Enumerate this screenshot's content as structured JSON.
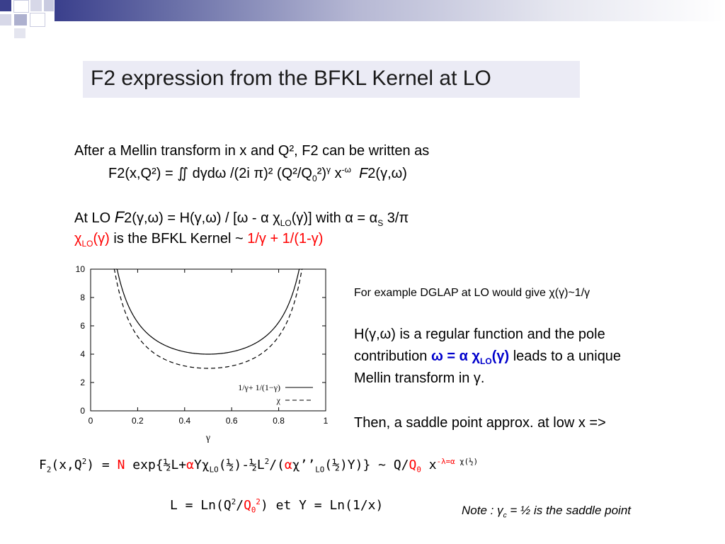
{
  "slide": {
    "title": "F2 expression from the BFKL Kernel at LO",
    "intro_line": "After a Mellin transform in x and Q², F2 can be written as",
    "formula_lhs": "F2(x,Q²) = ∬ dγdω /(2i π)² (Q²/Q",
    "formula_sub0": "0",
    "formula_mid": "²)",
    "formula_sup_gamma": "γ",
    "formula_x": " x",
    "formula_sup_omega": "-ω",
    "formula_F": "F",
    "formula_tail": "2(γ,ω)",
    "atlo_prefix": "At LO ",
    "atlo_F": "F",
    "atlo_mid": "2(γ,ω) = H(γ,ω) / [ω - α χ",
    "atlo_sub_lo": "LO",
    "atlo_after": "(γ)]  with α = α",
    "atlo_sub_s": "S",
    "atlo_end": " 3/π",
    "chi_red": "χ",
    "chi_sub": "LO",
    "chi_red_arg": "(γ)",
    "kernel_text": " is the BFKL Kernel ~ ",
    "kernel_red": "1/γ + 1/(1-γ)",
    "dglap_text": "For example DGLAP at LO would give χ(γ)~1/γ",
    "h_line1": "H(γ,ω) is a regular function and the pole",
    "h_line2_prefix": "contribution ",
    "h_line2_blue": "ω = α χ",
    "h_line2_blue_sub": "LO",
    "h_line2_blue_arg": "(γ)",
    "h_line2_suffix": " leads to a unique",
    "h_line3": "Mellin transform in γ.",
    "saddle_text": "Then, a saddle point approx. at low x =>",
    "big_formula": {
      "p1": "F",
      "p1_sub": "2",
      "p2": "(x,Q",
      "p2_sup": "2",
      "p3": ") = ",
      "N": "N",
      "p4": " exp{½L+",
      "alpha_red": "α",
      "p5": "Yχ",
      "p5_sub": "LO",
      "p6": "(½)-½L",
      "p6_sup": "2",
      "p7": "/(",
      "alpha_red2": "α",
      "p8": "χ’’",
      "p8_sub": "LO",
      "p9": "(½)Y)} ~ Q/",
      "Q0": "Q",
      "Q0_sub": "0",
      "p10": " x",
      "sup_red": "-λ=α",
      "sup_black": " χ(½)"
    },
    "l_formula": {
      "p1": "L = Ln(Q",
      "p1_sup": "2",
      "p2": "/",
      "Q0": "Q",
      "Q0_sub": "0",
      "Q0_sup": "2",
      "p3": ") et Y = Ln(1/x)"
    },
    "note": {
      "p1": "Note : γ",
      "sub": "c",
      "p2": " = ½ is the saddle point"
    }
  },
  "chart_data": {
    "type": "line",
    "xlabel": "γ",
    "ylabel": "",
    "xlim": [
      0,
      1
    ],
    "ylim": [
      0,
      10
    ],
    "xticks": [
      "0",
      "0.2",
      "0.4",
      "0.6",
      "0.8",
      "1"
    ],
    "yticks": [
      "0",
      "2",
      "4",
      "6",
      "8",
      "10"
    ],
    "legend_placement": "bottom-right",
    "series": [
      {
        "name": "1/γ+ 1/(1−γ)",
        "style": "solid",
        "formula": "1/x+1/(1-x)"
      },
      {
        "name": "χ",
        "style": "dashed",
        "formula": "1/x+1/(1-x)-1"
      }
    ]
  },
  "colors": {
    "accent_red": "#ff0000",
    "accent_blue": "#0000cc",
    "title_bg": "#ebebf5",
    "bar_dark": "#3a3f8c"
  }
}
